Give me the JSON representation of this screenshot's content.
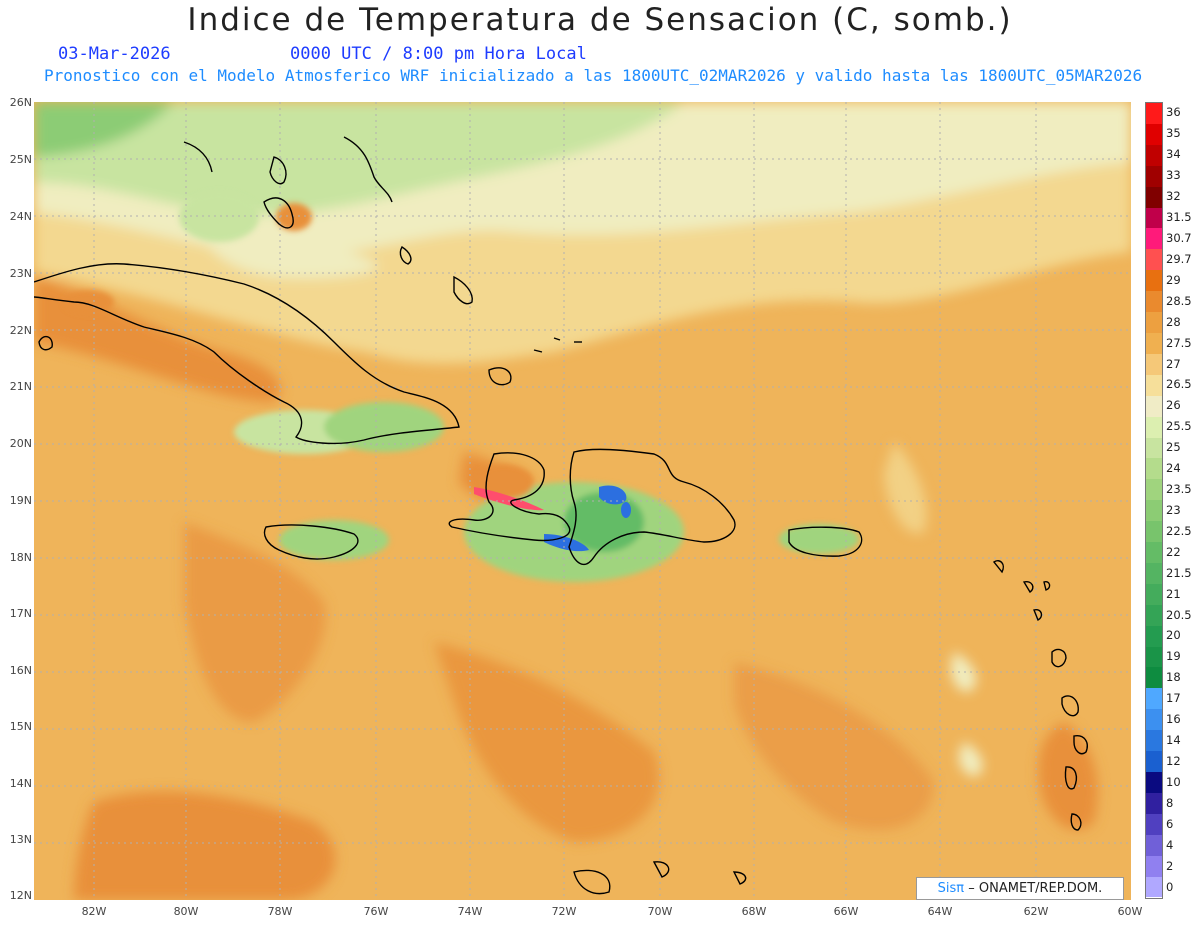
{
  "header": {
    "title": "Indice de Temperatura de Sensacion (C, somb.)",
    "date": "03-Mar-2026",
    "time": "0000 UTC / 8:00 pm Hora Local",
    "subtitle": "Pronostico con el Modelo Atmosferico WRF inicializado a las 1800UTC_02MAR2026 y valido hasta las  1800UTC_05MAR2026"
  },
  "map": {
    "lat_labels": [
      "26N",
      "25N",
      "24N",
      "23N",
      "22N",
      "21N",
      "20N",
      "19N",
      "18N",
      "17N",
      "16N",
      "15N",
      "14N",
      "13N",
      "12N"
    ],
    "lon_labels": [
      "82W",
      "80W",
      "78W",
      "76W",
      "74W",
      "72W",
      "70W",
      "68W",
      "66W",
      "64W",
      "62W",
      "60W"
    ],
    "lat_range": [
      12,
      26
    ],
    "lon_range": [
      -83.2,
      -60
    ],
    "grid": true,
    "colors": {
      "sea_base": "#efb45a",
      "warm": "#e8903a",
      "cool": "#f3d890",
      "pale": "#f0edc0",
      "green_light": "#c8e4a0",
      "green": "#6cc07a",
      "blue": "#2c6fe0",
      "coast": "#000000"
    }
  },
  "colorbar": {
    "labels": [
      "36",
      "35",
      "34",
      "33",
      "32",
      "31.5",
      "30.7",
      "29.7",
      "29",
      "28.5",
      "28",
      "27.5",
      "27",
      "26.5",
      "26",
      "25.5",
      "25",
      "24",
      "23.5",
      "23",
      "22.5",
      "22",
      "21.5",
      "21",
      "20.5",
      "20",
      "19",
      "18",
      "17",
      "16",
      "14",
      "12",
      "10",
      "8",
      "6",
      "4",
      "2",
      "0"
    ],
    "colors": [
      "#ff1a1a",
      "#e00000",
      "#c00000",
      "#a00000",
      "#800000",
      "#c0004a",
      "#ff1a7a",
      "#ff5050",
      "#e87010",
      "#ea8a2e",
      "#eda040",
      "#f0b050",
      "#f5c878",
      "#f6df9a",
      "#f0ecc6",
      "#dcefb0",
      "#c8e4a0",
      "#b4dc8c",
      "#a0d47e",
      "#8ccc74",
      "#78c46c",
      "#64bc66",
      "#54b462",
      "#44ac5c",
      "#34a456",
      "#249c50",
      "#1a9448",
      "#0e8c40",
      "#4fa8ff",
      "#3c90f0",
      "#2a78e0",
      "#1a60d0",
      "#0a0a80",
      "#3020a0",
      "#5040c0",
      "#7060d8",
      "#9080f0",
      "#b0a8ff"
    ]
  },
  "credit": {
    "logo": "Sisπ",
    "text": "– ONAMET/REP.DOM."
  }
}
